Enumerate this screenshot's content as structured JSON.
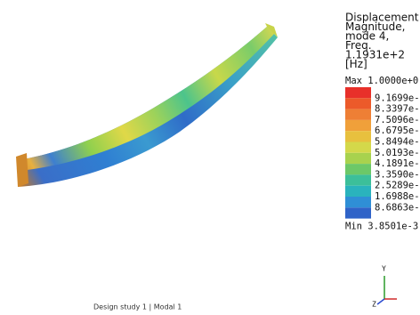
{
  "legend": {
    "title": [
      "Displacement",
      "Magnitude,",
      "mode 4,",
      "Freq.",
      "1.1931e+2",
      "[Hz]"
    ],
    "max": "Max 1.0000e+0",
    "labels": [
      "9.1699e-1",
      "8.3397e-1",
      "7.5096e-1",
      "6.6795e-1",
      "5.8494e-1",
      "5.0193e-1",
      "4.1891e-1",
      "3.3590e-1",
      "2.5289e-1",
      "1.6988e-1",
      "8.6863e-2"
    ],
    "colors": [
      "#e8302a",
      "#ec5a2a",
      "#ee7f35",
      "#f0a03a",
      "#e8c03e",
      "#d4d84a",
      "#a8d24e",
      "#6cc868",
      "#3cbf9a",
      "#2ab3bd",
      "#2f8fd6",
      "#2f63c8"
    ],
    "min": "Min 3.8501e-3"
  },
  "footer": "Design study 1 | Modal 1",
  "triad": {
    "y": "Y",
    "z": "Z"
  }
}
